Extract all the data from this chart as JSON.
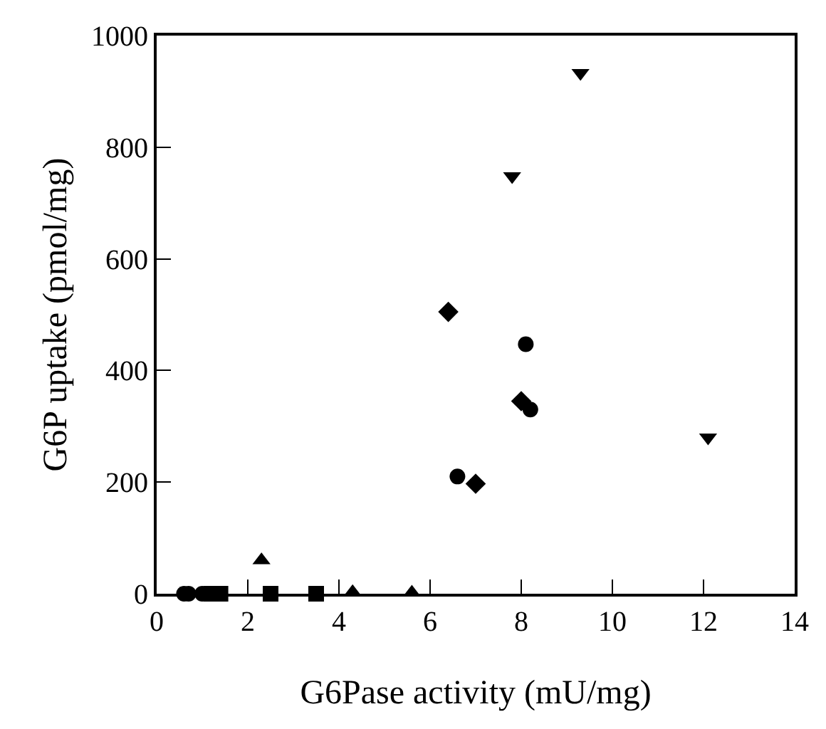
{
  "chart_data": {
    "type": "scatter",
    "xlabel": "G6Pase activity (mU/mg)",
    "ylabel": "G6P uptake (pmol/mg)",
    "xlim": [
      0,
      14
    ],
    "xticks": [
      0,
      2,
      4,
      6,
      8,
      10,
      12,
      14
    ],
    "ylim": [
      0,
      1000
    ],
    "yticks": [
      0,
      200,
      400,
      600,
      800,
      1000
    ],
    "series": [
      {
        "color": "#000000",
        "marker": "circle",
        "x": [
          0.6,
          0.7,
          1.0
        ],
        "values": [
          0,
          0,
          0
        ]
      },
      {
        "color": "#000000",
        "marker": "square",
        "x": [
          1.2,
          1.4,
          2.5,
          3.5
        ],
        "values": [
          0,
          0,
          0,
          0
        ]
      },
      {
        "color": "#000000",
        "marker": "triangle",
        "x": [
          2.3,
          4.3,
          5.6
        ],
        "values": [
          60,
          3,
          2
        ]
      },
      {
        "color": "#000000",
        "marker": "diamond",
        "x": [
          6.4,
          7.0,
          8.0
        ],
        "values": [
          505,
          197,
          345
        ]
      },
      {
        "color": "#000000",
        "marker": "circle",
        "x": [
          6.6,
          8.1,
          8.2
        ],
        "values": [
          210,
          447,
          330
        ]
      },
      {
        "color": "#000000",
        "marker": "triangle-down",
        "x": [
          7.8,
          9.3,
          12.1
        ],
        "values": [
          748,
          933,
          280
        ]
      }
    ]
  }
}
